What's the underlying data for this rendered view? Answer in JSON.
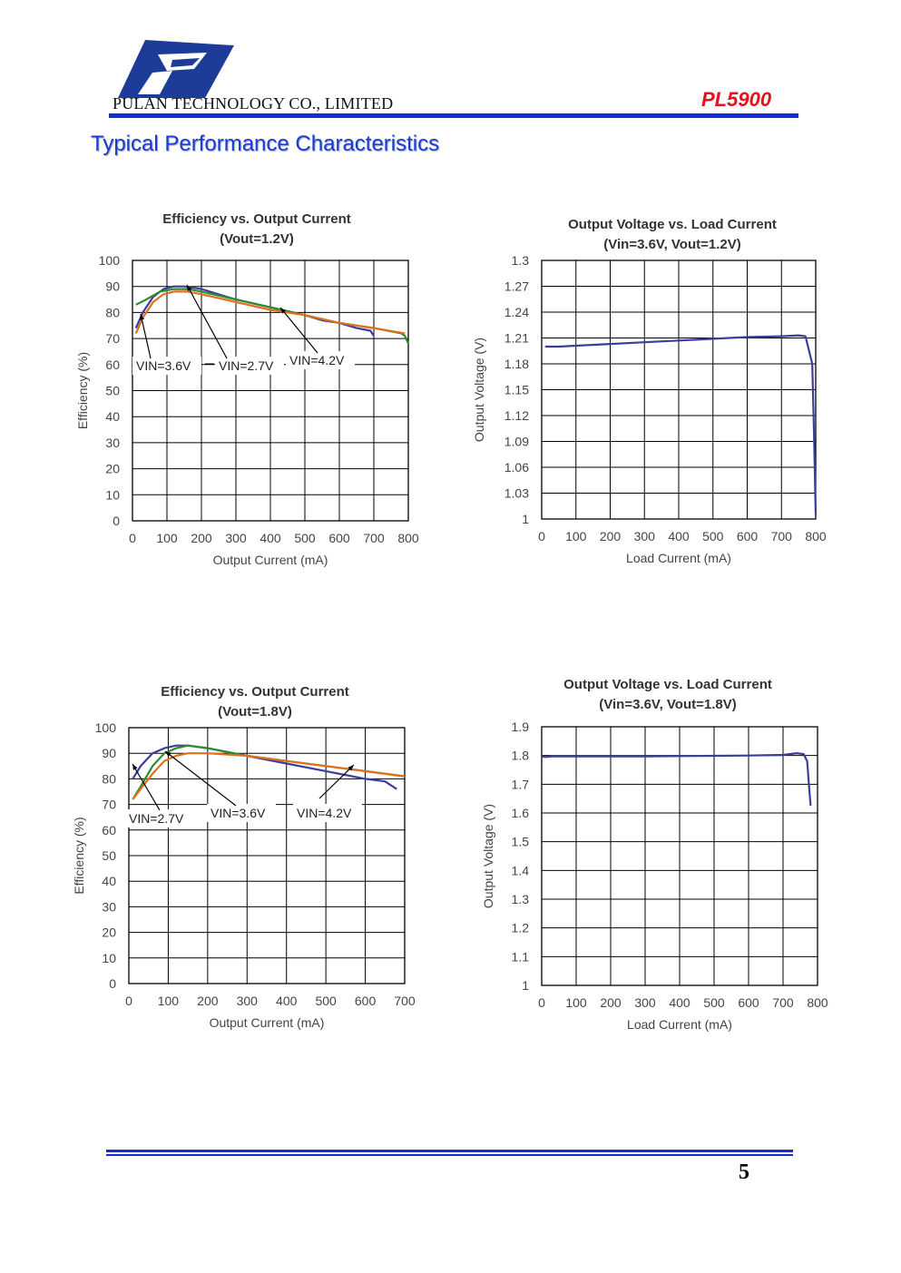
{
  "header": {
    "company": "PULAN TECHNOLOGY CO., LIMITED",
    "part_number": "PL5900",
    "logo": "pulan-p-logo",
    "accent_color": "#1a2bd6",
    "part_color": "#e8101c"
  },
  "section_title": "Typical Performance Characteristics",
  "footer": {
    "page_number": "5"
  },
  "chart_data": [
    {
      "id": "eff12",
      "type": "line",
      "title": "Efficiency vs. Output Current",
      "subtitle": "(Vout=1.2V)",
      "xlabel": "Output Current (mA)",
      "ylabel": "Efficiency (%)",
      "xlim": [
        0,
        800
      ],
      "ylim": [
        0,
        100
      ],
      "xticks": [
        "0",
        "100",
        "200",
        "300",
        "400",
        "500",
        "600",
        "700",
        "800"
      ],
      "yticks": [
        "0",
        "10",
        "20",
        "30",
        "40",
        "50",
        "60",
        "70",
        "80",
        "90",
        "100"
      ],
      "grid": true,
      "series": [
        {
          "name": "VIN=3.6V",
          "color": "#3b3f9a",
          "x": [
            10,
            30,
            60,
            90,
            120,
            150,
            200,
            300,
            400,
            500,
            550,
            600,
            650,
            690,
            700
          ],
          "y": [
            74,
            80,
            86,
            89,
            90,
            90,
            89,
            85,
            82,
            79,
            77,
            76,
            74,
            73,
            71
          ]
        },
        {
          "name": "VIN=2.7V",
          "color": "#2e8b2e",
          "x": [
            10,
            40,
            80,
            120,
            160,
            200,
            300,
            400,
            500,
            600,
            700,
            780,
            790,
            800
          ],
          "y": [
            83,
            85,
            88,
            89,
            89,
            88,
            85,
            82,
            79,
            76,
            74,
            72,
            71,
            68
          ]
        },
        {
          "name": "VIN=4.2V",
          "color": "#e07020",
          "x": [
            10,
            30,
            60,
            90,
            120,
            160,
            200,
            300,
            400,
            500,
            600,
            700,
            790
          ],
          "y": [
            72,
            78,
            84,
            87,
            88,
            88,
            87,
            84,
            81,
            79,
            76,
            74,
            72
          ]
        }
      ],
      "annotations": [
        "VIN=3.6V",
        "VIN=2.7V",
        "VIN=4.2V"
      ]
    },
    {
      "id": "vout12",
      "type": "line",
      "title": "Output Voltage vs. Load Current",
      "subtitle": "(Vin=3.6V, Vout=1.2V)",
      "xlabel": "Load Current (mA)",
      "ylabel": "Output Voltage (V)",
      "xlim": [
        0,
        800
      ],
      "ylim": [
        1.0,
        1.3
      ],
      "xticks": [
        "0",
        "100",
        "200",
        "300",
        "400",
        "500",
        "600",
        "700",
        "800"
      ],
      "yticks": [
        "1",
        "1.03",
        "1.06",
        "1.09",
        "1.12",
        "1.15",
        "1.18",
        "1.21",
        "1.24",
        "1.27",
        "1.3"
      ],
      "grid": true,
      "series": [
        {
          "name": "",
          "color": "#3b3f9a",
          "x": [
            10,
            50,
            100,
            200,
            300,
            400,
            500,
            600,
            700,
            750,
            770,
            790,
            795,
            800
          ],
          "y": [
            1.2,
            1.2,
            1.201,
            1.203,
            1.205,
            1.207,
            1.209,
            1.211,
            1.212,
            1.213,
            1.212,
            1.18,
            1.1,
            1.005
          ]
        }
      ]
    },
    {
      "id": "eff18",
      "type": "line",
      "title": "Efficiency vs. Output Current",
      "subtitle": "(Vout=1.8V)",
      "xlabel": "Output Current (mA)",
      "ylabel": "Efficiency (%)",
      "xlim": [
        0,
        700
      ],
      "ylim": [
        0,
        100
      ],
      "xticks": [
        "0",
        "100",
        "200",
        "300",
        "400",
        "500",
        "600",
        "700"
      ],
      "yticks": [
        "0",
        "10",
        "20",
        "30",
        "40",
        "50",
        "60",
        "70",
        "80",
        "90",
        "100"
      ],
      "grid": true,
      "series": [
        {
          "name": "VIN=2.7V",
          "color": "#3b3f9a",
          "x": [
            10,
            30,
            60,
            90,
            120,
            150,
            200,
            300,
            400,
            500,
            600,
            650,
            680
          ],
          "y": [
            80,
            85,
            90,
            92,
            93,
            93,
            92,
            89,
            86,
            83,
            80,
            79,
            76
          ]
        },
        {
          "name": "VIN=3.6V",
          "color": "#2e8b2e",
          "x": [
            10,
            30,
            60,
            90,
            120,
            150,
            200,
            300,
            400,
            500,
            600,
            700
          ],
          "y": [
            72,
            77,
            85,
            90,
            92,
            93,
            92,
            89,
            87,
            85,
            83,
            81
          ]
        },
        {
          "name": "VIN=4.2V",
          "color": "#e07020",
          "x": [
            10,
            30,
            60,
            90,
            120,
            150,
            200,
            300,
            400,
            500,
            600,
            700
          ],
          "y": [
            72,
            76,
            82,
            87,
            89,
            90,
            90,
            89,
            87,
            85,
            83,
            81
          ]
        }
      ],
      "annotations": [
        "VIN=2.7V",
        "VIN=3.6V",
        "VIN=4.2V"
      ]
    },
    {
      "id": "vout18",
      "type": "line",
      "title": "Output Voltage vs. Load Current",
      "subtitle": "(Vin=3.6V, Vout=1.8V)",
      "xlabel": "Load Current (mA)",
      "ylabel": "Output Voltage (V)",
      "xlim": [
        0,
        800
      ],
      "ylim": [
        1.0,
        1.9
      ],
      "xticks": [
        "0",
        "100",
        "200",
        "300",
        "400",
        "500",
        "600",
        "700",
        "800"
      ],
      "yticks": [
        "1",
        "1.1",
        "1.2",
        "1.3",
        "1.4",
        "1.5",
        "1.6",
        "1.7",
        "1.8",
        "1.9"
      ],
      "grid": true,
      "series": [
        {
          "name": "",
          "color": "#3b3f9a",
          "x": [
            0,
            10,
            30,
            100,
            200,
            300,
            400,
            500,
            600,
            700,
            740,
            760,
            770,
            775,
            780
          ],
          "y": [
            1.797,
            1.795,
            1.797,
            1.797,
            1.797,
            1.797,
            1.798,
            1.799,
            1.8,
            1.802,
            1.808,
            1.805,
            1.78,
            1.7,
            1.625
          ]
        }
      ]
    }
  ]
}
